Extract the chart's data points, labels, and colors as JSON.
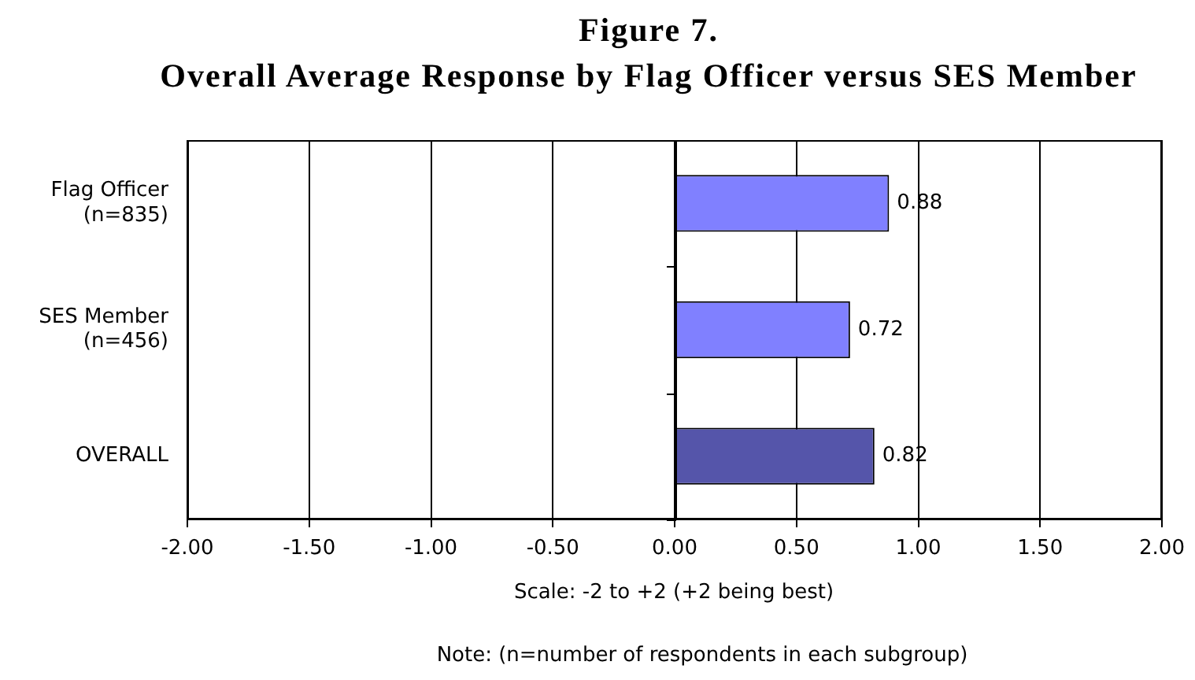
{
  "chart_data": {
    "type": "bar",
    "orientation": "horizontal",
    "title": "Figure 7.",
    "subtitle": "Overall Average Response by Flag Officer versus SES Member",
    "xlabel": "Scale: -2 to +2 (+2 being best)",
    "categories": [
      "Flag Officer\n(n=835)",
      "SES Member\n(n=456)",
      "OVERALL"
    ],
    "values": [
      0.88,
      0.72,
      0.82
    ],
    "colors": [
      "#8080ff",
      "#8080ff",
      "#5555aa"
    ],
    "xlim": [
      -2,
      2
    ],
    "xticks": [
      {
        "value": -2,
        "label": "-2.00"
      },
      {
        "value": -1.5,
        "label": "-1.50"
      },
      {
        "value": -1,
        "label": "-1.00"
      },
      {
        "value": -0.5,
        "label": "-0.50"
      },
      {
        "value": 0,
        "label": "0.00"
      },
      {
        "value": 0.5,
        "label": "0.50"
      },
      {
        "value": 1,
        "label": "1.00"
      },
      {
        "value": 1.5,
        "label": "1.50"
      },
      {
        "value": 2,
        "label": "2.00"
      }
    ],
    "grid": "x",
    "data_labels": true,
    "annotations": [
      "Note: (n=number of respondents in each subgroup)"
    ]
  }
}
